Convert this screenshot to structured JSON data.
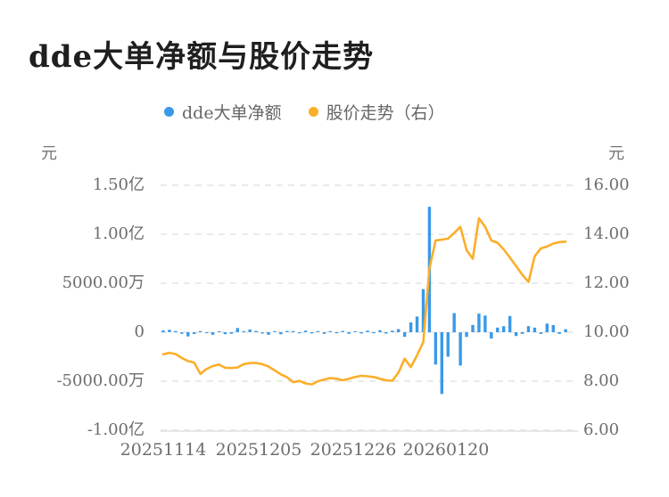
{
  "header": {
    "title": "dde大单净额与股价走势"
  },
  "axes": {
    "left_unit": "元",
    "right_unit": "元"
  },
  "chart_data": {
    "type": "bar",
    "combo": "bar+line dual-axis",
    "title": "dde大单净额与股价走势",
    "grid": "horizontal dashed gridlines, solid bottom axis",
    "legend_position": "top center",
    "x_tick_labels": [
      "20251114",
      "20251205",
      "20251226",
      "20260120"
    ],
    "left_axis": {
      "unit": "元",
      "tick_labels": [
        "1.50亿",
        "1.00亿",
        "5000.00万",
        "0",
        "-5000.00万",
        "-1.00亿"
      ],
      "max": 150000000,
      "min": -100000000,
      "tick_step": 50000000
    },
    "right_axis": {
      "unit": "元",
      "tick_labels": [
        "16.00",
        "14.00",
        "12.00",
        "10.00",
        "8.00",
        "6.00"
      ],
      "max": 16,
      "min": 6,
      "tick_step": 2
    },
    "series": [
      {
        "name": "dde大单净额",
        "type": "bar",
        "axis": "left",
        "unit": "万元",
        "color": "#3A99E8",
        "values": [
          180,
          250,
          120,
          -150,
          -430,
          -180,
          120,
          -100,
          -260,
          100,
          -200,
          -160,
          430,
          110,
          280,
          130,
          -130,
          -260,
          110,
          -210,
          130,
          110,
          -110,
          160,
          -120,
          110,
          -160,
          110,
          -110,
          130,
          -160,
          110,
          -130,
          160,
          -110,
          210,
          -140,
          160,
          320,
          -470,
          1000,
          1600,
          4400,
          12800,
          -3300,
          -6300,
          -2500,
          1950,
          -3400,
          -480,
          740,
          1900,
          1700,
          -650,
          470,
          610,
          1650,
          -380,
          -170,
          620,
          470,
          -170,
          880,
          730,
          -170,
          310
        ]
      },
      {
        "name": "股价走势（右）",
        "type": "line",
        "axis": "right",
        "unit": "元",
        "color": "#FBAE2A",
        "values": [
          9.1,
          9.16,
          9.11,
          8.95,
          8.82,
          8.76,
          8.3,
          8.5,
          8.62,
          8.68,
          8.55,
          8.54,
          8.56,
          8.7,
          8.74,
          8.74,
          8.7,
          8.6,
          8.44,
          8.28,
          8.16,
          7.96,
          8.01,
          7.91,
          7.87,
          8.0,
          8.07,
          8.13,
          8.1,
          8.04,
          8.1,
          8.17,
          8.22,
          8.2,
          8.17,
          8.1,
          8.04,
          8.02,
          8.35,
          8.92,
          8.58,
          9.05,
          9.6,
          12.6,
          13.75,
          13.78,
          13.82,
          14.05,
          14.3,
          13.35,
          13.0,
          14.65,
          14.3,
          13.75,
          13.65,
          13.38,
          13.05,
          12.7,
          12.35,
          12.05,
          13.1,
          13.42,
          13.5,
          13.62,
          13.68,
          13.7
        ]
      }
    ]
  }
}
